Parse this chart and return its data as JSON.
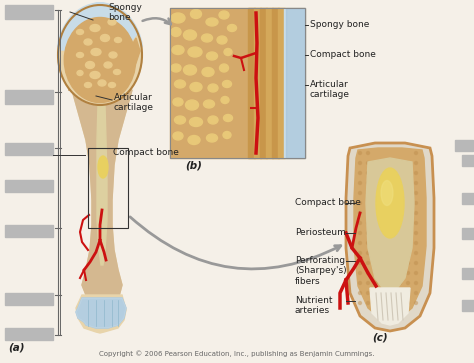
{
  "background_color": "#f5f0e8",
  "copyright_text": "Copyright © 2006 Pearson Education, Inc., publishing as Benjamin Cummings.",
  "label_a": "(a)",
  "label_b": "(b)",
  "label_c": "(c)",
  "gray_box_color": "#b8b8b8",
  "bone_tan": "#d4a96a",
  "bone_light": "#e8c98a",
  "bone_pale": "#e8d4aa",
  "bone_outer": "#c8a060",
  "cartilage_blue": "#a0c0d8",
  "cartilage_light": "#c8dce8",
  "marrow_yellow": "#e8d060",
  "blood_red": "#cc1111",
  "white_color": "#f0ece4",
  "text_color": "#222222",
  "line_color": "#333333",
  "arrow_color": "#999999",
  "font_size_labels": 6.5,
  "font_size_caption": 5.0,
  "font_size_sublabel": 7.5,
  "spongy_hole_color": "#c89050"
}
